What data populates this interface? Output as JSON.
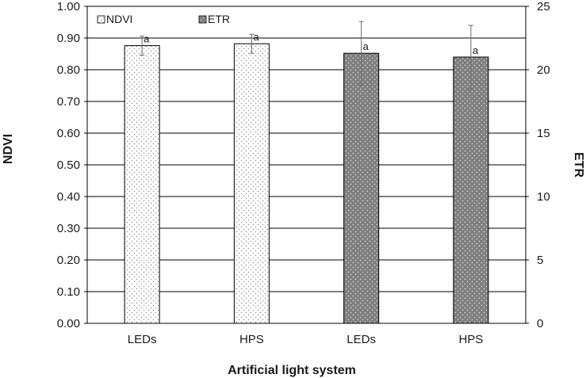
{
  "chart_data": {
    "type": "bar",
    "categories": [
      "LEDs",
      "HPS",
      "LEDs",
      "HPS"
    ],
    "series": [
      {
        "name": "NDVI",
        "axis": "left",
        "values": [
          0.876,
          0.882,
          null,
          null
        ],
        "errors": [
          0.03,
          0.03,
          null,
          null
        ],
        "labels": [
          "a",
          "a",
          "",
          ""
        ],
        "color": "#ffffff",
        "pattern": "light-dots"
      },
      {
        "name": "ETR",
        "axis": "right",
        "values": [
          null,
          null,
          21.3,
          21.0
        ],
        "errors": [
          null,
          null,
          2.5,
          2.5
        ],
        "labels": [
          "",
          "",
          "a",
          "a"
        ],
        "color": "#7f7f7f",
        "pattern": "white-dots"
      }
    ],
    "xlabel": "Artificial light system",
    "ylabel": "NDVI",
    "y2label": "ETR",
    "ylim": [
      0,
      1.0
    ],
    "y2lim": [
      0,
      25
    ],
    "yticks": [
      "0.00",
      "0.10",
      "0.20",
      "0.30",
      "0.40",
      "0.50",
      "0.60",
      "0.70",
      "0.80",
      "0.90",
      "1.00"
    ],
    "y2ticks": [
      "0",
      "5",
      "10",
      "15",
      "20",
      "25"
    ],
    "grid": true,
    "legend": "top-left"
  }
}
